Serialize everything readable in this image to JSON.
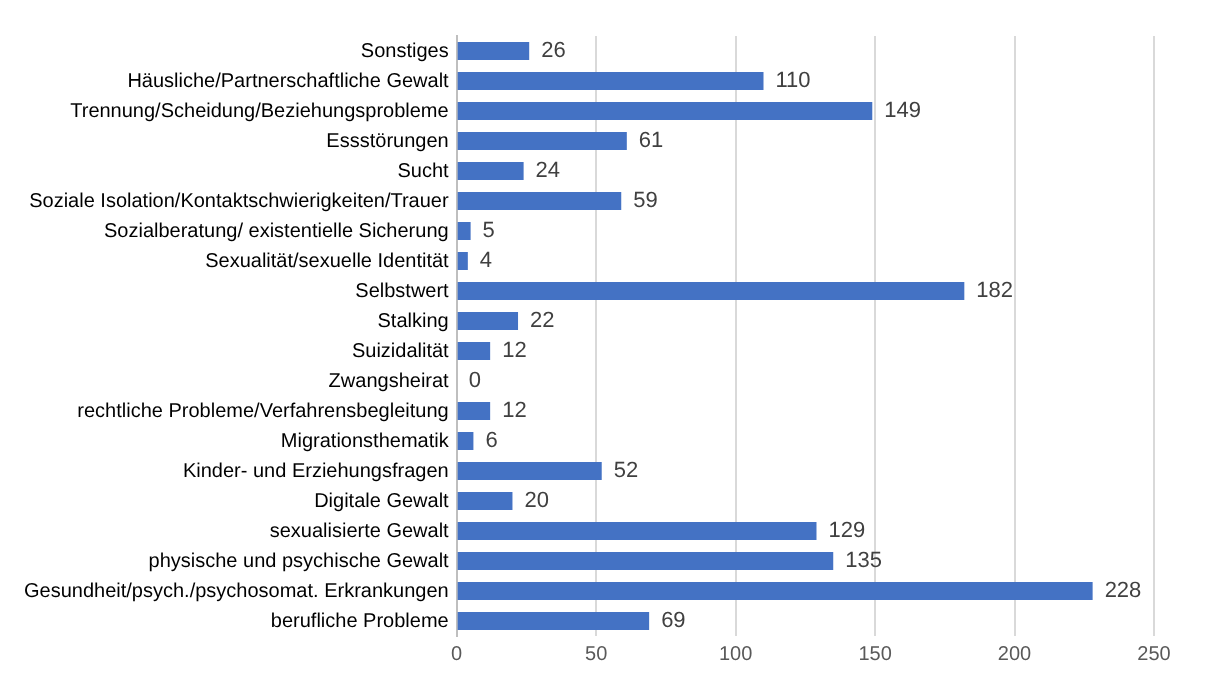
{
  "chart_data": {
    "type": "bar",
    "orientation": "horizontal",
    "categories": [
      "Sonstiges",
      "Häusliche/Partnerschaftliche Gewalt",
      "Trennung/Scheidung/Beziehungsprobleme",
      "Essstörungen",
      "Sucht",
      "Soziale Isolation/Kontaktschwierigkeiten/Trauer",
      "Sozialberatung/ existentielle Sicherung",
      "Sexualität/sexuelle Identität",
      "Selbstwert",
      "Stalking",
      "Suizidalität",
      "Zwangsheirat",
      "rechtliche Probleme/Verfahrensbegleitung",
      "Migrationsthematik",
      "Kinder- und Erziehungsfragen",
      "Digitale Gewalt",
      "sexualisierte Gewalt",
      "physische und psychische Gewalt",
      "Gesundheit/psych./psychosomat. Erkrankungen",
      "berufliche Probleme"
    ],
    "values": [
      26,
      110,
      149,
      61,
      24,
      59,
      5,
      4,
      182,
      22,
      12,
      0,
      12,
      6,
      52,
      20,
      129,
      135,
      228,
      69
    ],
    "color": "#4472c4",
    "xlim": [
      0,
      250
    ],
    "xticks": [
      0,
      50,
      100,
      150,
      200,
      250
    ],
    "grid": "x",
    "data_labels": true
  }
}
